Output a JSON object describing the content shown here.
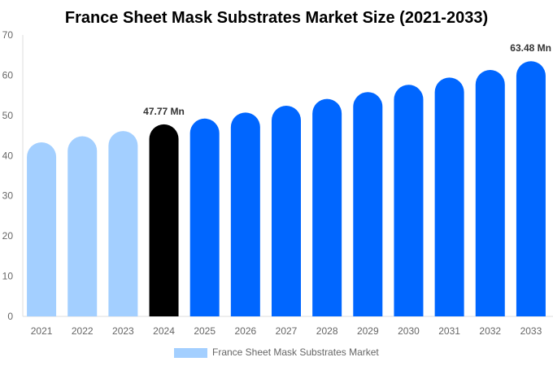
{
  "chart_data": {
    "type": "bar",
    "title": "France Sheet Mask Substrates Market Size (2021-2033)",
    "categories": [
      "2021",
      "2022",
      "2023",
      "2024",
      "2025",
      "2026",
      "2027",
      "2028",
      "2029",
      "2030",
      "2031",
      "2032",
      "2033"
    ],
    "series": [
      {
        "name": "France Sheet Mask Substrates Market",
        "values": [
          43.3,
          44.8,
          46.1,
          47.77,
          49.2,
          50.7,
          52.4,
          54.1,
          55.8,
          57.6,
          59.4,
          61.3,
          63.48
        ]
      }
    ],
    "data_labels": [
      {
        "category": "2024",
        "text": "47.77 Mn"
      },
      {
        "category": "2033",
        "text": "63.48 Mn"
      }
    ],
    "ylim": [
      0,
      70
    ],
    "yticks": [
      0,
      10,
      20,
      30,
      40,
      50,
      60,
      70
    ],
    "xlabel": "",
    "ylabel": "",
    "grid": false,
    "legend_position": "bottom",
    "colors": {
      "historic": "#a3cfff",
      "current": "#000000",
      "forecast": "#0066ff"
    }
  }
}
